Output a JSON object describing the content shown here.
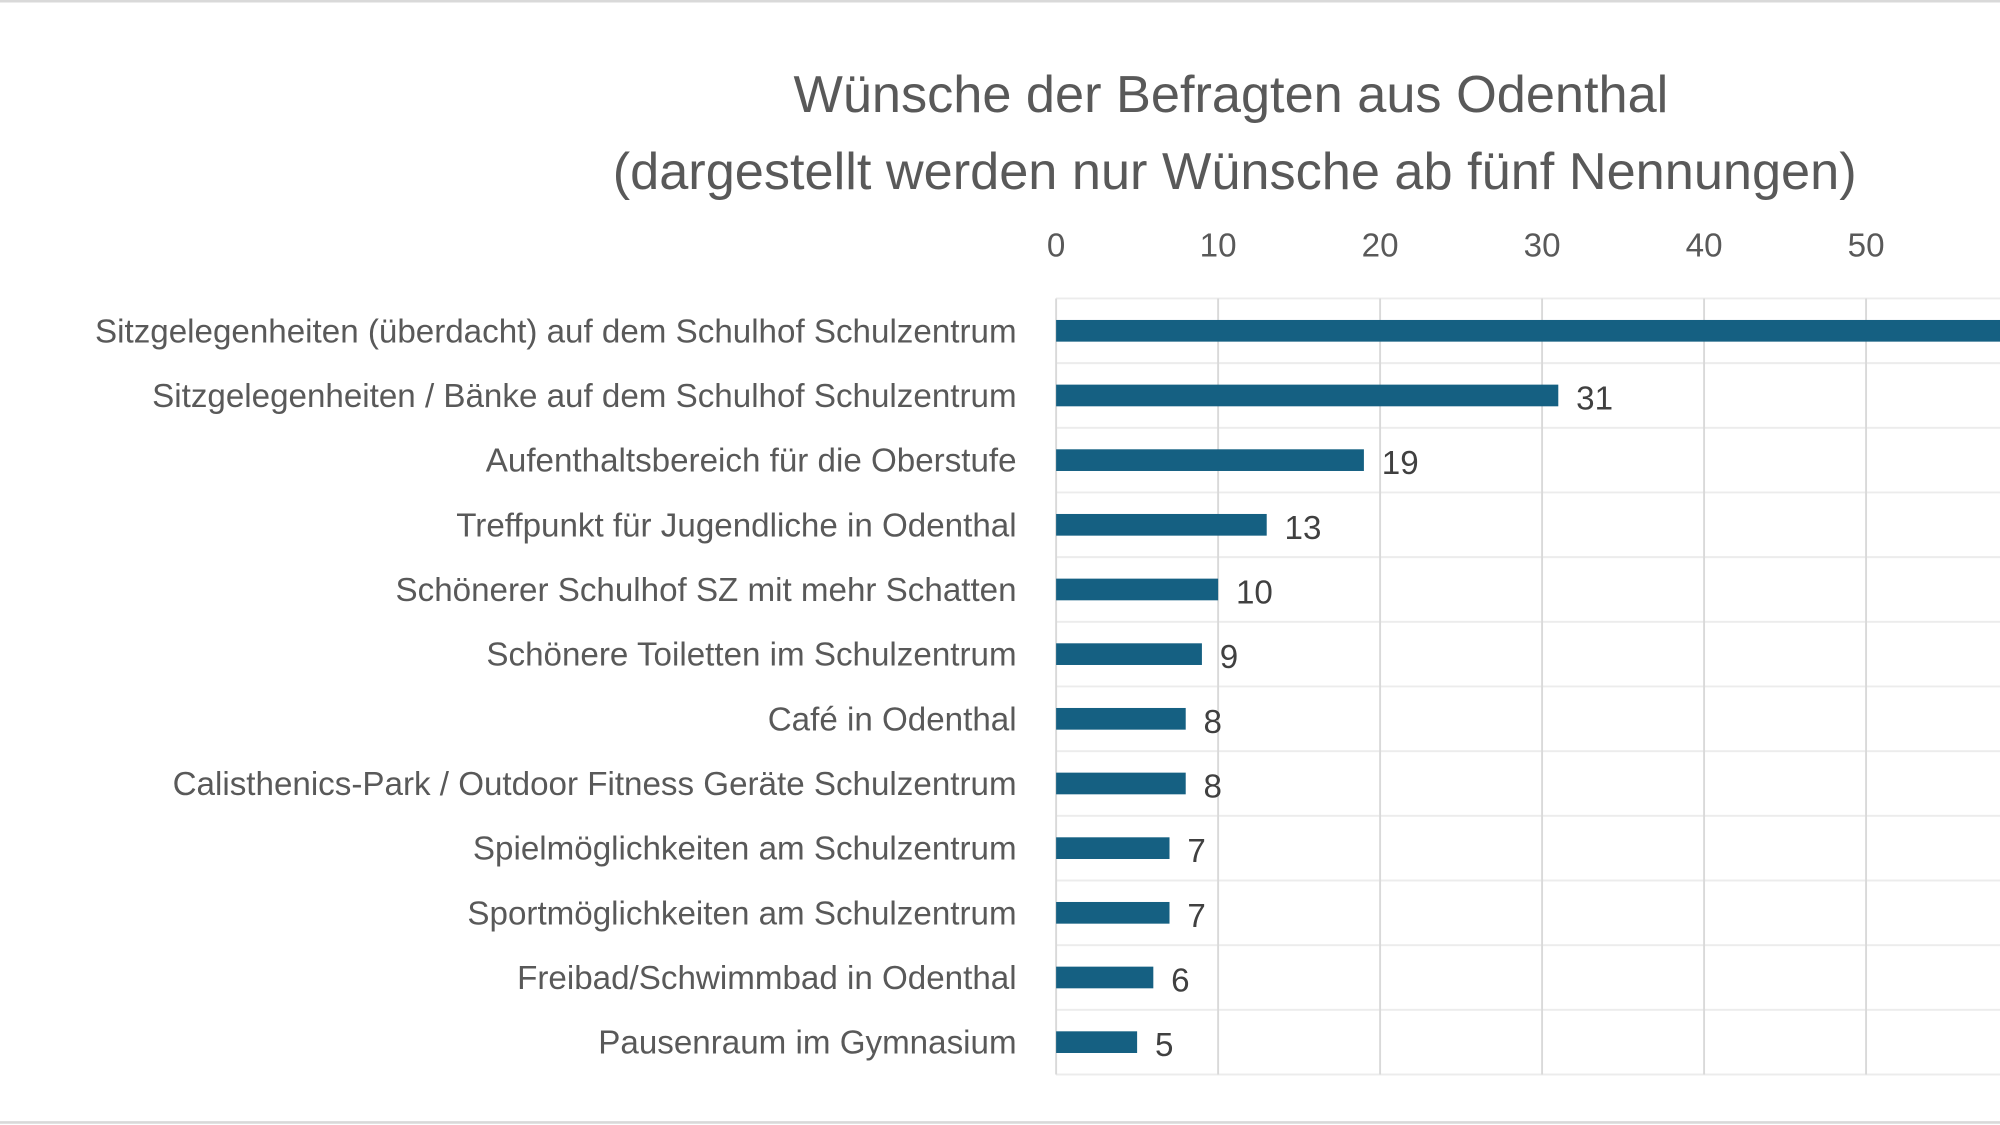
{
  "chart_data": {
    "type": "bar",
    "orientation": "horizontal",
    "title": "Wünsche der Befragten aus Odenthal",
    "subtitle": "(dargestellt werden nur Wünsche ab fünf Nennungen)",
    "xlabel": "",
    "ylabel": "",
    "xlim": [
      0,
      58
    ],
    "x_ticks": [
      "0",
      "10",
      "20",
      "30",
      "40",
      "50"
    ],
    "grid": true,
    "bar_color": "#156082",
    "categories": [
      "Sitzgelegenheiten (überdacht) auf dem Schulhof Schulzentrum",
      "Sitzgelegenheiten / Bänke  auf dem Schulhof Schulzentrum",
      "Aufenthaltsbereich für die Oberstufe",
      "Treffpunkt für Jugendliche in Odenthal",
      "Schönerer Schulhof SZ mit mehr Schatten",
      "Schönere Toiletten im Schulzentrum",
      "Café in Odenthal",
      "Calisthenics-Park / Outdoor Fitness Geräte Schulzentrum",
      "Spielmöglichkeiten am Schulzentrum",
      "Sportmöglichkeiten am Schulzentrum",
      "Freibad/Schwimmbad in Odenthal",
      "Pausenraum im Gymnasium"
    ],
    "values": [
      60,
      31,
      19,
      13,
      10,
      9,
      8,
      8,
      7,
      7,
      6,
      5
    ],
    "data_labels": [
      "",
      "31",
      "19",
      "13",
      "10",
      "9",
      "8",
      "8",
      "7",
      "7",
      "6",
      "5"
    ]
  }
}
